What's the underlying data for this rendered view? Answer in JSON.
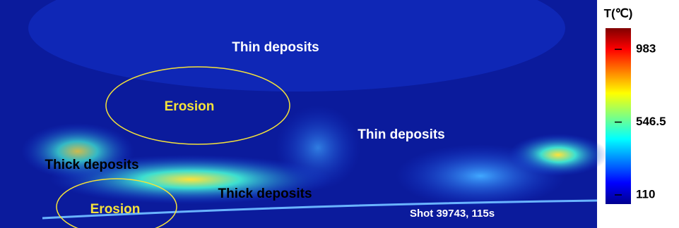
{
  "image": {
    "annotations": [
      {
        "text": "Thin deposits"
      },
      {
        "text": "Erosion"
      },
      {
        "text": "Thin deposits"
      },
      {
        "text": "Thick deposits"
      },
      {
        "text": "Thick deposits"
      },
      {
        "text": "Erosion"
      },
      {
        "text": "Shot 39743, 115s"
      }
    ]
  },
  "colorbar": {
    "title": "T(℃)",
    "lim": [
      55,
      1110
    ],
    "ticks": [
      983,
      546.5,
      110
    ]
  }
}
